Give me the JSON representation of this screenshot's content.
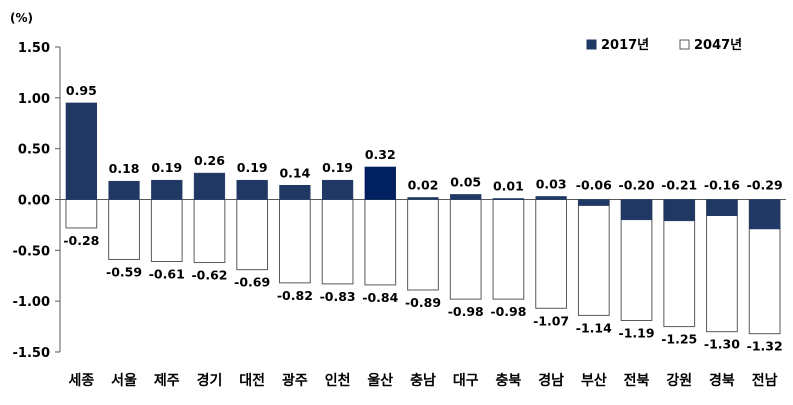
{
  "chart_data": {
    "type": "bar",
    "unit_label": "(%)",
    "categories": [
      "세종",
      "서울",
      "제주",
      "경기",
      "대전",
      "광주",
      "인천",
      "울산",
      "충남",
      "대구",
      "충북",
      "경남",
      "부산",
      "전북",
      "강원",
      "경북",
      "전남"
    ],
    "series": [
      {
        "name": "2017년",
        "values": [
          0.95,
          0.18,
          0.19,
          0.26,
          0.19,
          0.14,
          0.19,
          0.32,
          0.02,
          0.05,
          0.01,
          0.03,
          -0.06,
          -0.2,
          -0.21,
          -0.16,
          -0.29
        ],
        "labels": [
          "0.95",
          "0.18",
          "0.19",
          "0.26",
          "0.19",
          "0.14",
          "0.19",
          "0.32",
          "0.02",
          "0.05",
          "0.01",
          "0.03",
          "-0.06",
          "-0.20",
          "-0.21",
          "-0.16",
          "-0.29"
        ]
      },
      {
        "name": "2047년",
        "values": [
          -0.28,
          -0.59,
          -0.61,
          -0.62,
          -0.69,
          -0.82,
          -0.83,
          -0.84,
          -0.89,
          -0.98,
          -0.98,
          -1.07,
          -1.14,
          -1.19,
          -1.25,
          -1.3,
          -1.32
        ],
        "labels": [
          "-0.28",
          "-0.59",
          "-0.61",
          "-0.62",
          "-0.69",
          "-0.82",
          "-0.83",
          "-0.84",
          "-0.89",
          "-0.98",
          "-0.98",
          "-1.07",
          "-1.14",
          "-1.19",
          "-1.25",
          "-1.30",
          "-1.32"
        ]
      }
    ],
    "ylim": [
      -1.5,
      1.5
    ],
    "yticks": [
      1.5,
      1.0,
      0.5,
      0.0,
      -0.5,
      -1.0,
      -1.5
    ],
    "ytick_labels": [
      "1.50",
      "1.00",
      "0.50",
      "0.00",
      "-0.50",
      "-1.00",
      "-1.50"
    ],
    "legend_position": "top-right",
    "grid": false
  },
  "colors": {
    "series_2017": "#1f3864",
    "series_2017_highlight": "#002060",
    "series_2047": "#ffffff",
    "outline": "#595959",
    "axis": "#595959"
  }
}
